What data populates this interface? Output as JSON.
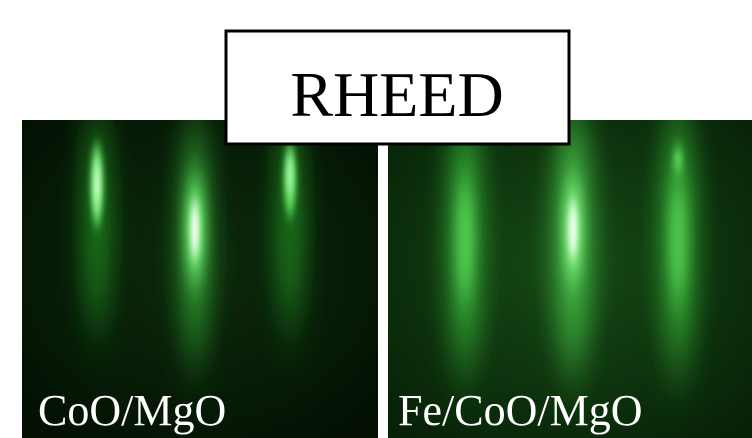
{
  "title": "RHEED",
  "panels": [
    {
      "label": "CoO/MgO"
    },
    {
      "label": "Fe/CoO/MgO"
    }
  ]
}
